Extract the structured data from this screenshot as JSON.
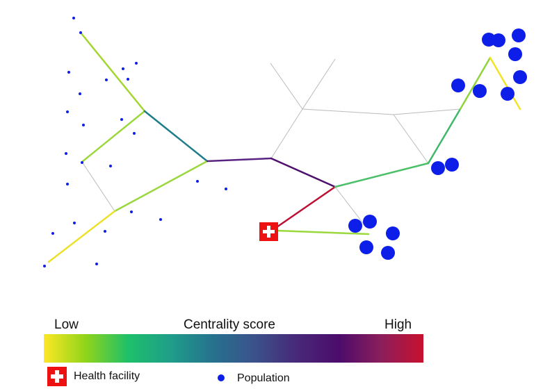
{
  "colorbar": {
    "low_label": "Low",
    "title": "Centrality score",
    "high_label": "High",
    "stops": [
      "#fde725",
      "#8fd41a",
      "#1ec06a",
      "#1f9e89",
      "#26728e",
      "#3b528b",
      "#482878",
      "#4c0c6b",
      "#8c1e5c",
      "#c8102e"
    ]
  },
  "legend": {
    "health_facility_label": "Health facility",
    "population_label": "Population"
  },
  "colors": {
    "health_facility": "#ee1111",
    "population": "#0d1ee8",
    "background_road": "#bbbbbb"
  }
}
